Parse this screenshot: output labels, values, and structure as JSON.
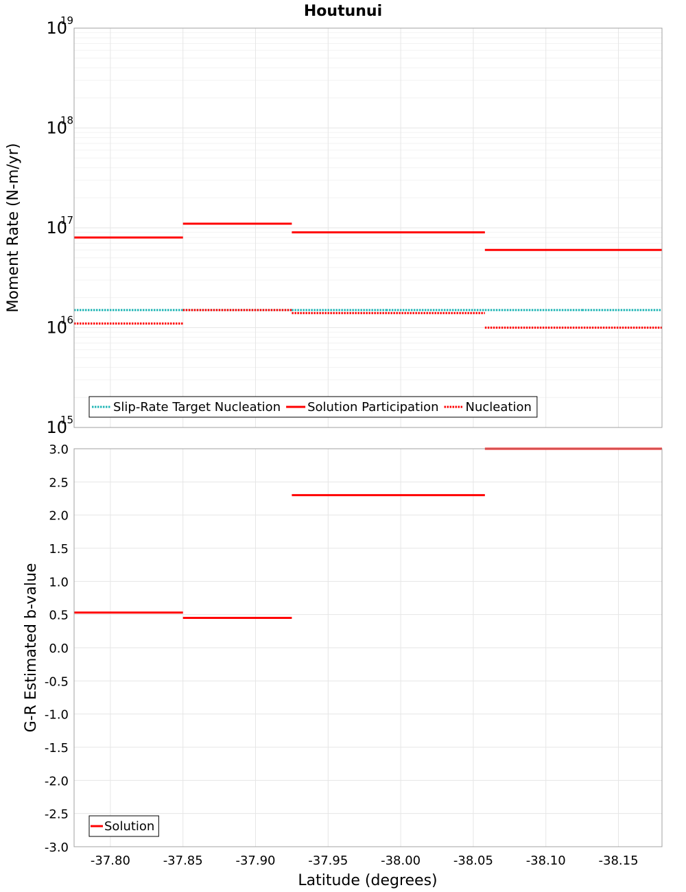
{
  "title": "Houtunui",
  "colors": {
    "target": "#1fb5b5",
    "solution": "#ff0000",
    "nucleation": "#ff0000",
    "grid": "#e6e6e6",
    "frame": "#a0a0a0"
  },
  "chart_data": [
    {
      "type": "line",
      "style": "step",
      "ylabel": "Moment Rate (N-m/yr)",
      "yscale": "log",
      "ylim": [
        1000000000000000.0,
        1e+19
      ],
      "xlim": [
        -37.775,
        -38.18
      ],
      "y_tick_exponents": [
        "15",
        "16",
        "17",
        "18",
        "19"
      ],
      "y_tick_base": "10",
      "grid": true,
      "legend_position": "bottom-left",
      "series": [
        {
          "name": "Slip-Rate Target Nucleation",
          "line": "dotted",
          "color": "#1fb5b5",
          "segments": [
            {
              "x0": -37.775,
              "x1": -37.85,
              "y": 1.5e+16
            },
            {
              "x0": -37.85,
              "x1": -37.925,
              "y": 1.5e+16
            },
            {
              "x0": -37.925,
              "x1": -37.99,
              "y": 1.5e+16
            },
            {
              "x0": -37.99,
              "x1": -38.058,
              "y": 1.5e+16
            },
            {
              "x0": -38.058,
              "x1": -38.125,
              "y": 1.5e+16
            },
            {
              "x0": -38.125,
              "x1": -38.18,
              "y": 1.5e+16
            }
          ]
        },
        {
          "name": "Solution Participation",
          "line": "solid",
          "color": "#ff0000",
          "segments": [
            {
              "x0": -37.775,
              "x1": -37.85,
              "y": 8e+16
            },
            {
              "x0": -37.85,
              "x1": -37.925,
              "y": 1.1e+17
            },
            {
              "x0": -37.925,
              "x1": -38.058,
              "y": 9e+16
            },
            {
              "x0": -38.058,
              "x1": -38.18,
              "y": 6e+16
            }
          ]
        },
        {
          "name": "Nucleation",
          "line": "dotted",
          "color": "#ff0000",
          "segments": [
            {
              "x0": -37.775,
              "x1": -37.85,
              "y": 1.1e+16
            },
            {
              "x0": -37.85,
              "x1": -37.925,
              "y": 1.5e+16
            },
            {
              "x0": -37.925,
              "x1": -38.058,
              "y": 1.4e+16
            },
            {
              "x0": -38.058,
              "x1": -38.18,
              "y": 1e+16
            }
          ]
        }
      ]
    },
    {
      "type": "line",
      "style": "step",
      "xlabel": "Latitude (degrees)",
      "ylabel": "G-R Estimated b-value",
      "ylim": [
        -3.0,
        3.0
      ],
      "xlim": [
        -37.775,
        -38.18
      ],
      "y_ticks": [
        "3.0",
        "2.5",
        "2.0",
        "1.5",
        "1.0",
        "0.5",
        "0.0",
        "-0.5",
        "-1.0",
        "-1.5",
        "-2.0",
        "-2.5",
        "-3.0"
      ],
      "x_ticks": [
        "-37.80",
        "-37.85",
        "-37.90",
        "-37.95",
        "-38.00",
        "-38.05",
        "-38.10",
        "-38.15"
      ],
      "grid": true,
      "legend_position": "bottom-left",
      "series": [
        {
          "name": "Solution",
          "line": "solid",
          "color": "#ff0000",
          "segments": [
            {
              "x0": -37.775,
              "x1": -37.85,
              "y": 0.53
            },
            {
              "x0": -37.85,
              "x1": -37.925,
              "y": 0.45
            },
            {
              "x0": -37.925,
              "x1": -38.058,
              "y": 2.3
            },
            {
              "x0": -38.058,
              "x1": -38.18,
              "y": 3.0
            }
          ]
        }
      ]
    }
  ]
}
